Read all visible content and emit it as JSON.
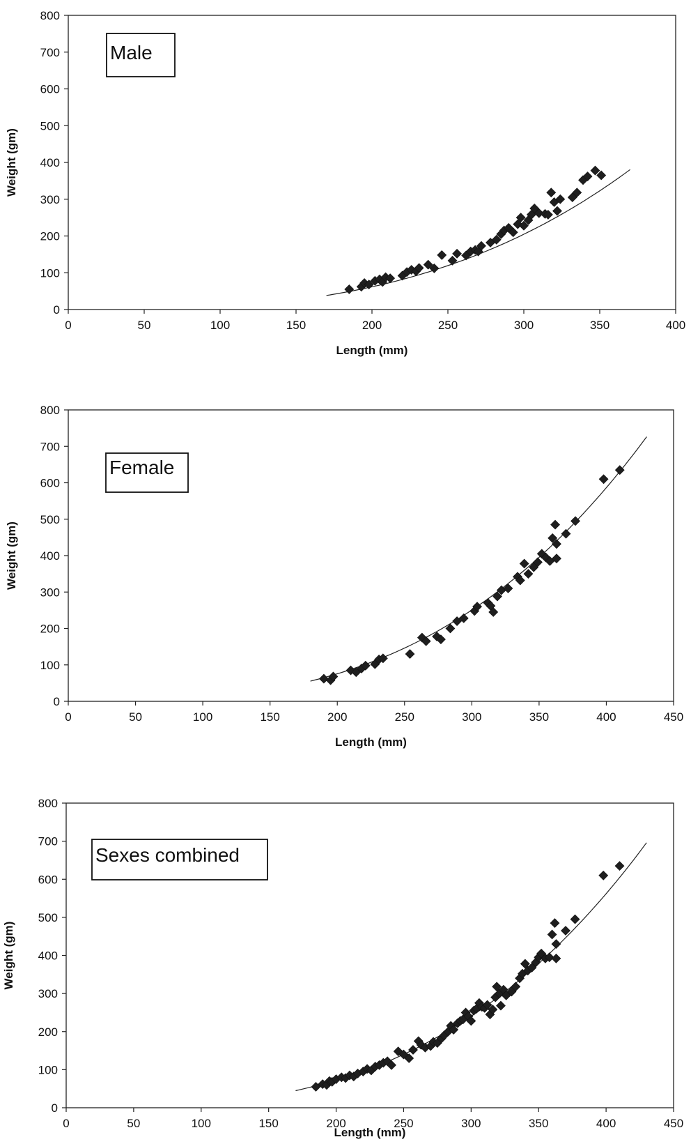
{
  "chart_data": [
    {
      "type": "scatter",
      "annotation": "Male",
      "xlabel": "Length (mm)",
      "ylabel": "Weight (gm)",
      "xlim": [
        0,
        400
      ],
      "ylim": [
        0,
        800
      ],
      "xticks": [
        0,
        50,
        100,
        150,
        200,
        250,
        300,
        350,
        400
      ],
      "yticks": [
        0,
        100,
        200,
        300,
        400,
        500,
        600,
        700,
        800
      ],
      "fit_range": [
        170,
        370
      ],
      "fit_coef": [
        9.8e-06,
        2.955
      ],
      "points": [
        [
          185,
          55
        ],
        [
          193,
          62
        ],
        [
          195,
          72
        ],
        [
          198,
          68
        ],
        [
          202,
          78
        ],
        [
          205,
          82
        ],
        [
          207,
          75
        ],
        [
          209,
          88
        ],
        [
          212,
          85
        ],
        [
          220,
          92
        ],
        [
          223,
          102
        ],
        [
          226,
          108
        ],
        [
          229,
          104
        ],
        [
          231,
          113
        ],
        [
          237,
          122
        ],
        [
          241,
          112
        ],
        [
          246,
          148
        ],
        [
          253,
          133
        ],
        [
          256,
          152
        ],
        [
          262,
          147
        ],
        [
          265,
          158
        ],
        [
          268,
          162
        ],
        [
          270,
          158
        ],
        [
          272,
          173
        ],
        [
          278,
          182
        ],
        [
          282,
          190
        ],
        [
          285,
          205
        ],
        [
          287,
          215
        ],
        [
          290,
          222
        ],
        [
          293,
          210
        ],
        [
          296,
          232
        ],
        [
          298,
          250
        ],
        [
          300,
          228
        ],
        [
          303,
          243
        ],
        [
          305,
          258
        ],
        [
          307,
          275
        ],
        [
          310,
          262
        ],
        [
          314,
          260
        ],
        [
          316,
          258
        ],
        [
          318,
          318
        ],
        [
          320,
          292
        ],
        [
          322,
          268
        ],
        [
          324,
          300
        ],
        [
          332,
          305
        ],
        [
          335,
          318
        ],
        [
          339,
          352
        ],
        [
          342,
          362
        ],
        [
          347,
          378
        ],
        [
          351,
          365
        ]
      ]
    },
    {
      "type": "scatter",
      "annotation": "Female",
      "xlabel": "Length (mm)",
      "ylabel": "Weight (gm)",
      "xlim": [
        0,
        450
      ],
      "ylim": [
        0,
        800
      ],
      "xticks": [
        0,
        50,
        100,
        150,
        200,
        250,
        300,
        350,
        400,
        450
      ],
      "yticks": [
        0,
        100,
        200,
        300,
        400,
        500,
        600,
        700,
        800
      ],
      "fit_range": [
        180,
        430
      ],
      "fit_coef": [
        1.2e-05,
        2.955
      ],
      "points": [
        [
          190,
          62
        ],
        [
          195,
          58
        ],
        [
          197,
          68
        ],
        [
          210,
          85
        ],
        [
          214,
          80
        ],
        [
          218,
          90
        ],
        [
          221,
          98
        ],
        [
          228,
          102
        ],
        [
          231,
          115
        ],
        [
          234,
          118
        ],
        [
          254,
          130
        ],
        [
          263,
          175
        ],
        [
          266,
          165
        ],
        [
          274,
          178
        ],
        [
          277,
          170
        ],
        [
          284,
          200
        ],
        [
          289,
          220
        ],
        [
          294,
          228
        ],
        [
          302,
          248
        ],
        [
          304,
          260
        ],
        [
          312,
          270
        ],
        [
          314,
          262
        ],
        [
          316,
          245
        ],
        [
          319,
          288
        ],
        [
          322,
          305
        ],
        [
          327,
          310
        ],
        [
          334,
          342
        ],
        [
          336,
          332
        ],
        [
          339,
          378
        ],
        [
          342,
          350
        ],
        [
          346,
          368
        ],
        [
          349,
          382
        ],
        [
          352,
          405
        ],
        [
          355,
          395
        ],
        [
          358,
          385
        ],
        [
          360,
          448
        ],
        [
          362,
          485
        ],
        [
          363,
          432
        ],
        [
          363,
          392
        ],
        [
          370,
          460
        ],
        [
          377,
          495
        ],
        [
          398,
          610
        ],
        [
          410,
          635
        ]
      ]
    },
    {
      "type": "scatter",
      "annotation": "Sexes combined",
      "xlabel": "Length (mm)",
      "ylabel": "Weight (gm)",
      "xlim": [
        0,
        450
      ],
      "ylim": [
        0,
        800
      ],
      "xticks": [
        0,
        50,
        100,
        150,
        200,
        250,
        300,
        350,
        400,
        450
      ],
      "yticks": [
        0,
        100,
        200,
        300,
        400,
        500,
        600,
        700,
        800
      ],
      "fit_range": [
        170,
        430
      ],
      "fit_coef": [
        1.15e-05,
        2.955
      ],
      "points": [
        [
          185,
          55
        ],
        [
          190,
          62
        ],
        [
          193,
          60
        ],
        [
          195,
          70
        ],
        [
          197,
          68
        ],
        [
          200,
          75
        ],
        [
          204,
          80
        ],
        [
          207,
          78
        ],
        [
          210,
          85
        ],
        [
          213,
          82
        ],
        [
          216,
          90
        ],
        [
          220,
          95
        ],
        [
          223,
          102
        ],
        [
          226,
          98
        ],
        [
          229,
          108
        ],
        [
          232,
          112
        ],
        [
          235,
          118
        ],
        [
          238,
          122
        ],
        [
          241,
          112
        ],
        [
          246,
          148
        ],
        [
          250,
          140
        ],
        [
          254,
          130
        ],
        [
          257,
          152
        ],
        [
          261,
          175
        ],
        [
          263,
          165
        ],
        [
          266,
          158
        ],
        [
          270,
          162
        ],
        [
          272,
          173
        ],
        [
          275,
          170
        ],
        [
          278,
          182
        ],
        [
          280,
          190
        ],
        [
          283,
          200
        ],
        [
          285,
          215
        ],
        [
          287,
          205
        ],
        [
          290,
          222
        ],
        [
          292,
          228
        ],
        [
          294,
          232
        ],
        [
          296,
          250
        ],
        [
          298,
          240
        ],
        [
          300,
          228
        ],
        [
          302,
          255
        ],
        [
          304,
          260
        ],
        [
          306,
          275
        ],
        [
          308,
          265
        ],
        [
          310,
          262
        ],
        [
          312,
          270
        ],
        [
          314,
          245
        ],
        [
          316,
          258
        ],
        [
          318,
          290
        ],
        [
          319,
          318
        ],
        [
          321,
          300
        ],
        [
          322,
          268
        ],
        [
          324,
          310
        ],
        [
          326,
          295
        ],
        [
          330,
          305
        ],
        [
          333,
          318
        ],
        [
          336,
          340
        ],
        [
          338,
          352
        ],
        [
          340,
          378
        ],
        [
          342,
          360
        ],
        [
          345,
          368
        ],
        [
          348,
          382
        ],
        [
          350,
          395
        ],
        [
          352,
          405
        ],
        [
          355,
          392
        ],
        [
          358,
          395
        ],
        [
          360,
          455
        ],
        [
          362,
          485
        ],
        [
          363,
          430
        ],
        [
          363,
          392
        ],
        [
          370,
          465
        ],
        [
          377,
          495
        ],
        [
          398,
          610
        ],
        [
          410,
          635
        ]
      ]
    }
  ]
}
